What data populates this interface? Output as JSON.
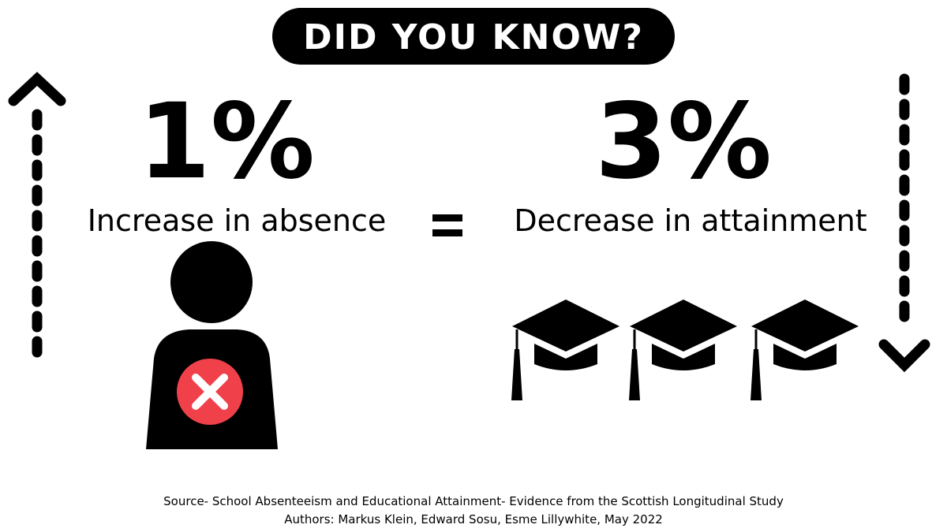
{
  "header": {
    "title": "DID YOU KNOW?"
  },
  "left": {
    "stat": "1%",
    "label": "Increase in absence"
  },
  "right": {
    "stat": "3%",
    "label": "Decrease in attainment"
  },
  "source": {
    "line1": "Source- School Absenteeism and Educational Attainment- Evidence from the Scottish Longitudinal Study",
    "line2": "Authors: Markus Klein,  Edward Sosu, Esme Lillywhite, May 2022"
  }
}
